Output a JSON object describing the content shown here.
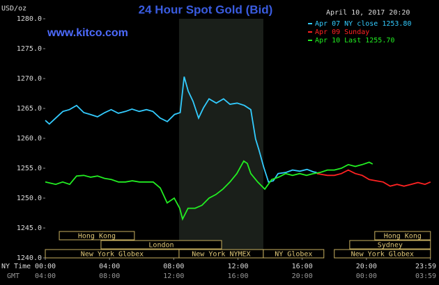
{
  "chart_data": {
    "type": "line",
    "title": "24 Hour Spot Gold (Bid)",
    "source": "www.kitco.com",
    "y_label": "USD/oz",
    "timestamp": "April 10, 2017 20:20",
    "x_row_label": "NY Time",
    "x2_row_label": "GMT",
    "xlim": [
      0,
      24
    ],
    "ylim": [
      1240,
      1280
    ],
    "xticks": [
      {
        "value": 0,
        "label": "00:00"
      },
      {
        "value": 4,
        "label": "04:00"
      },
      {
        "value": 8,
        "label": "08:00"
      },
      {
        "value": 12,
        "label": "12:00"
      },
      {
        "value": 16,
        "label": "16:00"
      },
      {
        "value": 20,
        "label": "20:00"
      },
      {
        "value": 23.983,
        "label": "23:59"
      }
    ],
    "x2tick_labels": [
      "04:00",
      "08:00",
      "12:00",
      "16:00",
      "20:00",
      "00:00",
      "03:59"
    ],
    "yticks": [
      {
        "value": 1240,
        "label": "1240.0"
      },
      {
        "value": 1245,
        "label": "1245.0"
      },
      {
        "value": 1250,
        "label": "1250.0"
      },
      {
        "value": 1255,
        "label": "1255.0"
      },
      {
        "value": 1260,
        "label": "1260.0"
      },
      {
        "value": 1265,
        "label": "1265.0"
      },
      {
        "value": 1270,
        "label": "1270.0"
      },
      {
        "value": 1275,
        "label": "1275.0"
      },
      {
        "value": 1280,
        "label": "1280.0"
      }
    ],
    "grid": false,
    "shaded_range": [
      8.33,
      13.58
    ],
    "legend_position": "top-right",
    "series": [
      {
        "name": "Apr 07 NY close 1253.80",
        "color": "#33ccff",
        "x": [
          0,
          0.25,
          0.65,
          1.1,
          1.5,
          1.95,
          2.4,
          2.8,
          3.25,
          3.7,
          4.1,
          4.55,
          5.0,
          5.4,
          5.85,
          6.3,
          6.7,
          7.15,
          7.6,
          8.05,
          8.4,
          8.65,
          8.9,
          9.2,
          9.55,
          9.85,
          10.2,
          10.65,
          11.1,
          11.5,
          11.95,
          12.4,
          12.8,
          13.1,
          13.3,
          13.6,
          13.9,
          14.2,
          14.5,
          15.0,
          15.4,
          15.85,
          16.3,
          16.7,
          16.9
        ],
        "values": [
          1263.0,
          1262.4,
          1263.4,
          1264.5,
          1264.8,
          1265.5,
          1264.3,
          1264.0,
          1263.6,
          1264.3,
          1264.8,
          1264.2,
          1264.5,
          1264.9,
          1264.5,
          1264.8,
          1264.5,
          1263.4,
          1262.8,
          1264.0,
          1264.3,
          1270.3,
          1267.9,
          1266.2,
          1263.4,
          1265.1,
          1266.6,
          1265.9,
          1266.6,
          1265.7,
          1265.9,
          1265.5,
          1264.8,
          1259.9,
          1258.1,
          1255.2,
          1252.7,
          1252.9,
          1254.1,
          1254.3,
          1254.7,
          1254.5,
          1254.8,
          1254.4,
          1254.3
        ]
      },
      {
        "name": "Apr 09 Sunday",
        "color": "#ff2222",
        "x": [
          16.92,
          17.57,
          18.0,
          18.44,
          18.87,
          19.31,
          19.74,
          20.17,
          20.61,
          21.04,
          21.48,
          21.91,
          22.34,
          22.78,
          23.21,
          23.65,
          23.99
        ],
        "values": [
          1254.1,
          1253.8,
          1253.8,
          1254.1,
          1254.7,
          1254.1,
          1253.8,
          1253.1,
          1252.9,
          1252.7,
          1252.0,
          1252.3,
          1252.0,
          1252.3,
          1252.6,
          1252.3,
          1252.7
        ]
      },
      {
        "name": "Apr 10 Last 1255.70",
        "color": "#22ee22",
        "x": [
          0,
          0.65,
          1.08,
          1.52,
          1.95,
          2.39,
          2.82,
          3.25,
          3.69,
          4.12,
          4.56,
          4.99,
          5.42,
          5.86,
          6.29,
          6.72,
          7.16,
          7.59,
          8.03,
          8.37,
          8.55,
          8.89,
          9.33,
          9.76,
          10.2,
          10.63,
          11.06,
          11.5,
          11.93,
          12.36,
          12.58,
          12.8,
          13.23,
          13.67,
          14.1,
          14.53,
          14.97,
          15.4,
          15.84,
          16.27,
          16.7,
          17.14,
          17.57,
          18.0,
          18.44,
          18.87,
          19.31,
          19.74,
          20.17,
          20.39
        ],
        "values": [
          1252.7,
          1252.3,
          1252.7,
          1252.3,
          1253.7,
          1253.8,
          1253.5,
          1253.7,
          1253.3,
          1253.1,
          1252.7,
          1252.7,
          1252.9,
          1252.7,
          1252.7,
          1252.7,
          1251.7,
          1249.2,
          1250.0,
          1248.3,
          1246.5,
          1248.3,
          1248.3,
          1248.8,
          1250.0,
          1250.6,
          1251.5,
          1252.7,
          1254.1,
          1256.2,
          1255.8,
          1254.1,
          1252.7,
          1251.5,
          1253.1,
          1253.5,
          1254.1,
          1253.8,
          1254.1,
          1253.8,
          1254.1,
          1254.3,
          1254.7,
          1254.7,
          1255.0,
          1255.6,
          1255.3,
          1255.6,
          1256.0,
          1255.7
        ]
      }
    ],
    "sessions": [
      {
        "label": "Hong Kong",
        "start": 0.87,
        "end": 5.55,
        "row": 0
      },
      {
        "label": "Hong Kong",
        "start": 20.52,
        "end": 23.99,
        "row": 0
      },
      {
        "label": "London",
        "start": 3.47,
        "end": 10.98,
        "row": 1
      },
      {
        "label": "Sydney",
        "start": 18.96,
        "end": 23.99,
        "row": 1
      },
      {
        "label": "New York Globex",
        "start": 0,
        "end": 8.33,
        "row": 2
      },
      {
        "label": "New York NYMEX",
        "start": 8.33,
        "end": 13.58,
        "row": 2
      },
      {
        "label": "NY Globex",
        "start": 13.58,
        "end": 17.35,
        "row": 2
      },
      {
        "label": "New York Globex",
        "start": 18.0,
        "end": 23.99,
        "row": 2
      }
    ]
  }
}
